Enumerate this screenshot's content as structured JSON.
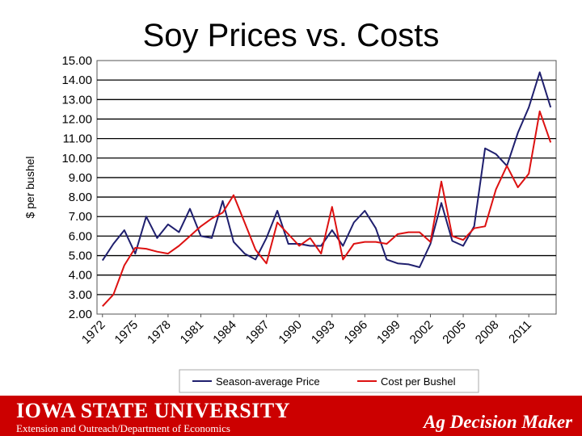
{
  "slide": {
    "title": "Soy Prices vs. Costs"
  },
  "footer": {
    "university": "Iowa State University",
    "department": "Extension and Outreach/Department of Economics",
    "brand": "Ag Decision Maker"
  },
  "colors": {
    "price": "#1f1f6e",
    "cost": "#dd1111",
    "footer_bg": "#cc0000"
  },
  "chart_data": {
    "type": "line",
    "title": "Soy Prices vs. Costs",
    "xlabel": "",
    "ylabel": "$ per bushel",
    "ylim": [
      2,
      15
    ],
    "xlim": [
      1972,
      2013
    ],
    "yticks": [
      "2.00",
      "3.00",
      "4.00",
      "5.00",
      "6.00",
      "7.00",
      "8.00",
      "9.00",
      "10.00",
      "11.00",
      "12.00",
      "13.00",
      "14.00",
      "15.00"
    ],
    "xticks": [
      "1972",
      "1975",
      "1978",
      "1981",
      "1984",
      "1987",
      "1990",
      "1993",
      "1996",
      "1999",
      "2002",
      "2005",
      "2008",
      "2011"
    ],
    "grid": true,
    "legend_position": "bottom",
    "x": [
      1972,
      1973,
      1974,
      1975,
      1976,
      1977,
      1978,
      1979,
      1980,
      1981,
      1982,
      1983,
      1984,
      1985,
      1986,
      1987,
      1988,
      1989,
      1990,
      1991,
      1992,
      1993,
      1994,
      1995,
      1996,
      1997,
      1998,
      1999,
      2000,
      2001,
      2002,
      2003,
      2004,
      2005,
      2006,
      2007,
      2008,
      2009,
      2010,
      2011,
      2012,
      2013
    ],
    "series": [
      {
        "name": "Season-average Price",
        "values": [
          4.75,
          5.6,
          6.3,
          5.1,
          7.0,
          5.9,
          6.6,
          6.2,
          7.4,
          6.0,
          5.9,
          7.8,
          5.7,
          5.1,
          4.8,
          5.9,
          7.3,
          5.6,
          5.6,
          5.5,
          5.5,
          6.3,
          5.5,
          6.7,
          7.3,
          6.4,
          4.8,
          4.6,
          4.55,
          4.4,
          5.6,
          7.7,
          5.75,
          5.5,
          6.5,
          10.5,
          10.2,
          9.6,
          11.3,
          12.6,
          14.4,
          12.6
        ]
      },
      {
        "name": "Cost per Bushel",
        "values": [
          2.4,
          3.0,
          4.5,
          5.4,
          5.35,
          5.2,
          5.1,
          5.5,
          6.0,
          6.5,
          6.9,
          7.2,
          8.1,
          6.7,
          5.3,
          4.6,
          6.7,
          6.1,
          5.5,
          5.9,
          5.1,
          7.5,
          4.8,
          5.6,
          5.7,
          5.7,
          5.6,
          6.1,
          6.2,
          6.2,
          5.7,
          8.8,
          6.0,
          5.8,
          6.4,
          6.5,
          8.4,
          9.6,
          8.5,
          9.2,
          12.4,
          10.8
        ]
      }
    ]
  }
}
